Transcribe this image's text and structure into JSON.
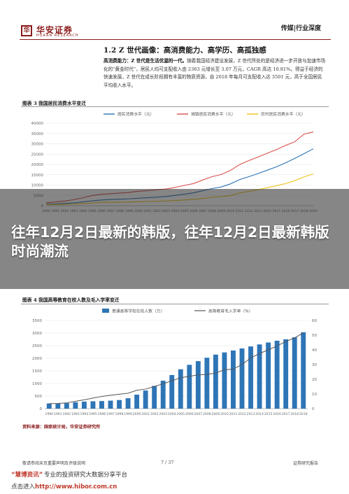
{
  "header": {
    "logo_glyph": "华",
    "brand": "华安证券",
    "brand_sub": "HUAAN RESEARCH",
    "industry": "传媒|行业深度"
  },
  "section": {
    "title": "1.2  Z 世代画像：高消费能力、高学历、高孤独感",
    "para1_lead": "高消费能力：Z 世代是生活优渥的一代。",
    "para1_rest": "随着我国经济建设发展，Z 世代所处的是经济进一步开放与加速市场化的“黄金时代”，居民人均可支配收入由 2363 元增长至 3.07 万元，CAGR 高达 10.81%。得益于经济的快速发展，Z 世代在成长阶段拥有丰富的物质资源，自 2018 年每月可支配收入达 3501 元，高于全国居民平均收入水平。"
  },
  "figure3": {
    "title": "图表 3   我国居民消费水平变迁",
    "chart_data": {
      "type": "line",
      "x": [
        1990,
        1991,
        1992,
        1993,
        1994,
        1995,
        1996,
        1997,
        1998,
        1999,
        2000,
        2001,
        2002,
        2003,
        2004,
        2005,
        2006,
        2007,
        2008,
        2009,
        2010,
        2011,
        2012,
        2013,
        2014,
        2015,
        2016,
        2017,
        2018,
        2019
      ],
      "series": [
        {
          "name": "居民消费水平（元）",
          "color": "#2e75b6",
          "values": [
            833,
            932,
            1116,
            1393,
            1833,
            2355,
            2789,
            3002,
            3159,
            3346,
            3632,
            3887,
            4144,
            4475,
            5032,
            5573,
            6263,
            7255,
            8349,
            9098,
            10575,
            12668,
            14074,
            15586,
            17220,
            18857,
            20801,
            22969,
            25245,
            27563
          ]
        },
        {
          "name": "城镇居民消费水平（元）",
          "color": "#d9534f",
          "values": [
            1404,
            1840,
            2262,
            2924,
            3852,
            4931,
            5532,
            5823,
            6109,
            6405,
            6999,
            7324,
            7745,
            8104,
            8880,
            9832,
            10739,
            12480,
            14061,
            15127,
            17104,
            19912,
            21861,
            23609,
            25424,
            27210,
            29219,
            31032,
            34707,
            35750
          ]
        },
        {
          "name": "农村居民消费水平（元）",
          "color": "#f0c419",
          "values": [
            627,
            602,
            688,
            805,
            1038,
            1313,
            1626,
            1722,
            1730,
            1766,
            1917,
            2032,
            2157,
            2292,
            2521,
            2784,
            3066,
            3538,
            4065,
            4402,
            4941,
            6187,
            6964,
            7773,
            8711,
            9679,
            10752,
            12145,
            13985,
            15382
          ]
        }
      ],
      "ylim": [
        0,
        40000
      ],
      "yticks": [
        0,
        5000,
        10000,
        15000,
        20000,
        25000,
        30000,
        35000,
        40000
      ],
      "grid": true,
      "legend": "top"
    }
  },
  "figure4": {
    "title": "图表 4   我国高等教育在校人数及毛入学率变迁",
    "source": "资料来源：国家统计局，华安证券研究所",
    "chart_data": {
      "type": "bar",
      "x": [
        1990,
        1991,
        1992,
        1993,
        1994,
        1995,
        1996,
        1997,
        1998,
        1999,
        2000,
        2001,
        2002,
        2003,
        2004,
        2005,
        2006,
        2007,
        2008,
        2009,
        2010,
        2011,
        2012,
        2013,
        2014,
        2015,
        2016,
        2017,
        2018,
        2019
      ],
      "series": [
        {
          "name": "普通高等学校在校人数（万）",
          "color": "#2e75b6",
          "values": [
            206,
            204,
            218,
            254,
            280,
            291,
            302,
            317,
            341,
            413,
            556,
            719,
            903,
            1109,
            1334,
            1562,
            1739,
            1885,
            2021,
            2145,
            2232,
            2309,
            2391,
            2468,
            2548,
            2625,
            2696,
            2754,
            2831,
            3032
          ]
        },
        {
          "name": "高等教育毛入学率（%）",
          "color": "#555555",
          "values": [
            3.4,
            3.5,
            3.9,
            5.0,
            6.0,
            7.2,
            8.3,
            9.1,
            9.8,
            10.5,
            12.5,
            13.3,
            15.0,
            17.0,
            19.0,
            21.0,
            22.0,
            23.0,
            23.3,
            24.2,
            26.5,
            26.9,
            30.0,
            34.5,
            37.5,
            40.0,
            42.7,
            45.7,
            48.1,
            51.6
          ]
        }
      ],
      "y_left_ticks": [
        0,
        500,
        1000,
        1500,
        2000,
        2500,
        3000,
        3500
      ],
      "y_right_ticks": [
        0,
        10,
        20,
        30,
        40,
        50,
        60
      ],
      "legend": "top"
    }
  },
  "footer": {
    "left": "敬请参阅末页重要声明及评级说明",
    "page": "7 / 37",
    "right": "证券研究报告"
  },
  "overlay": {
    "headline": "往年12月2日最新的韩版，往年12月2日最新韩版时尚潮流"
  },
  "hibor": {
    "logo": "“慧博资讯”",
    "slogan": "专业的投资研究大数据分享平台",
    "url_prefix": "点击进入",
    "url_domain": "http://www.hibor.com.cn"
  }
}
